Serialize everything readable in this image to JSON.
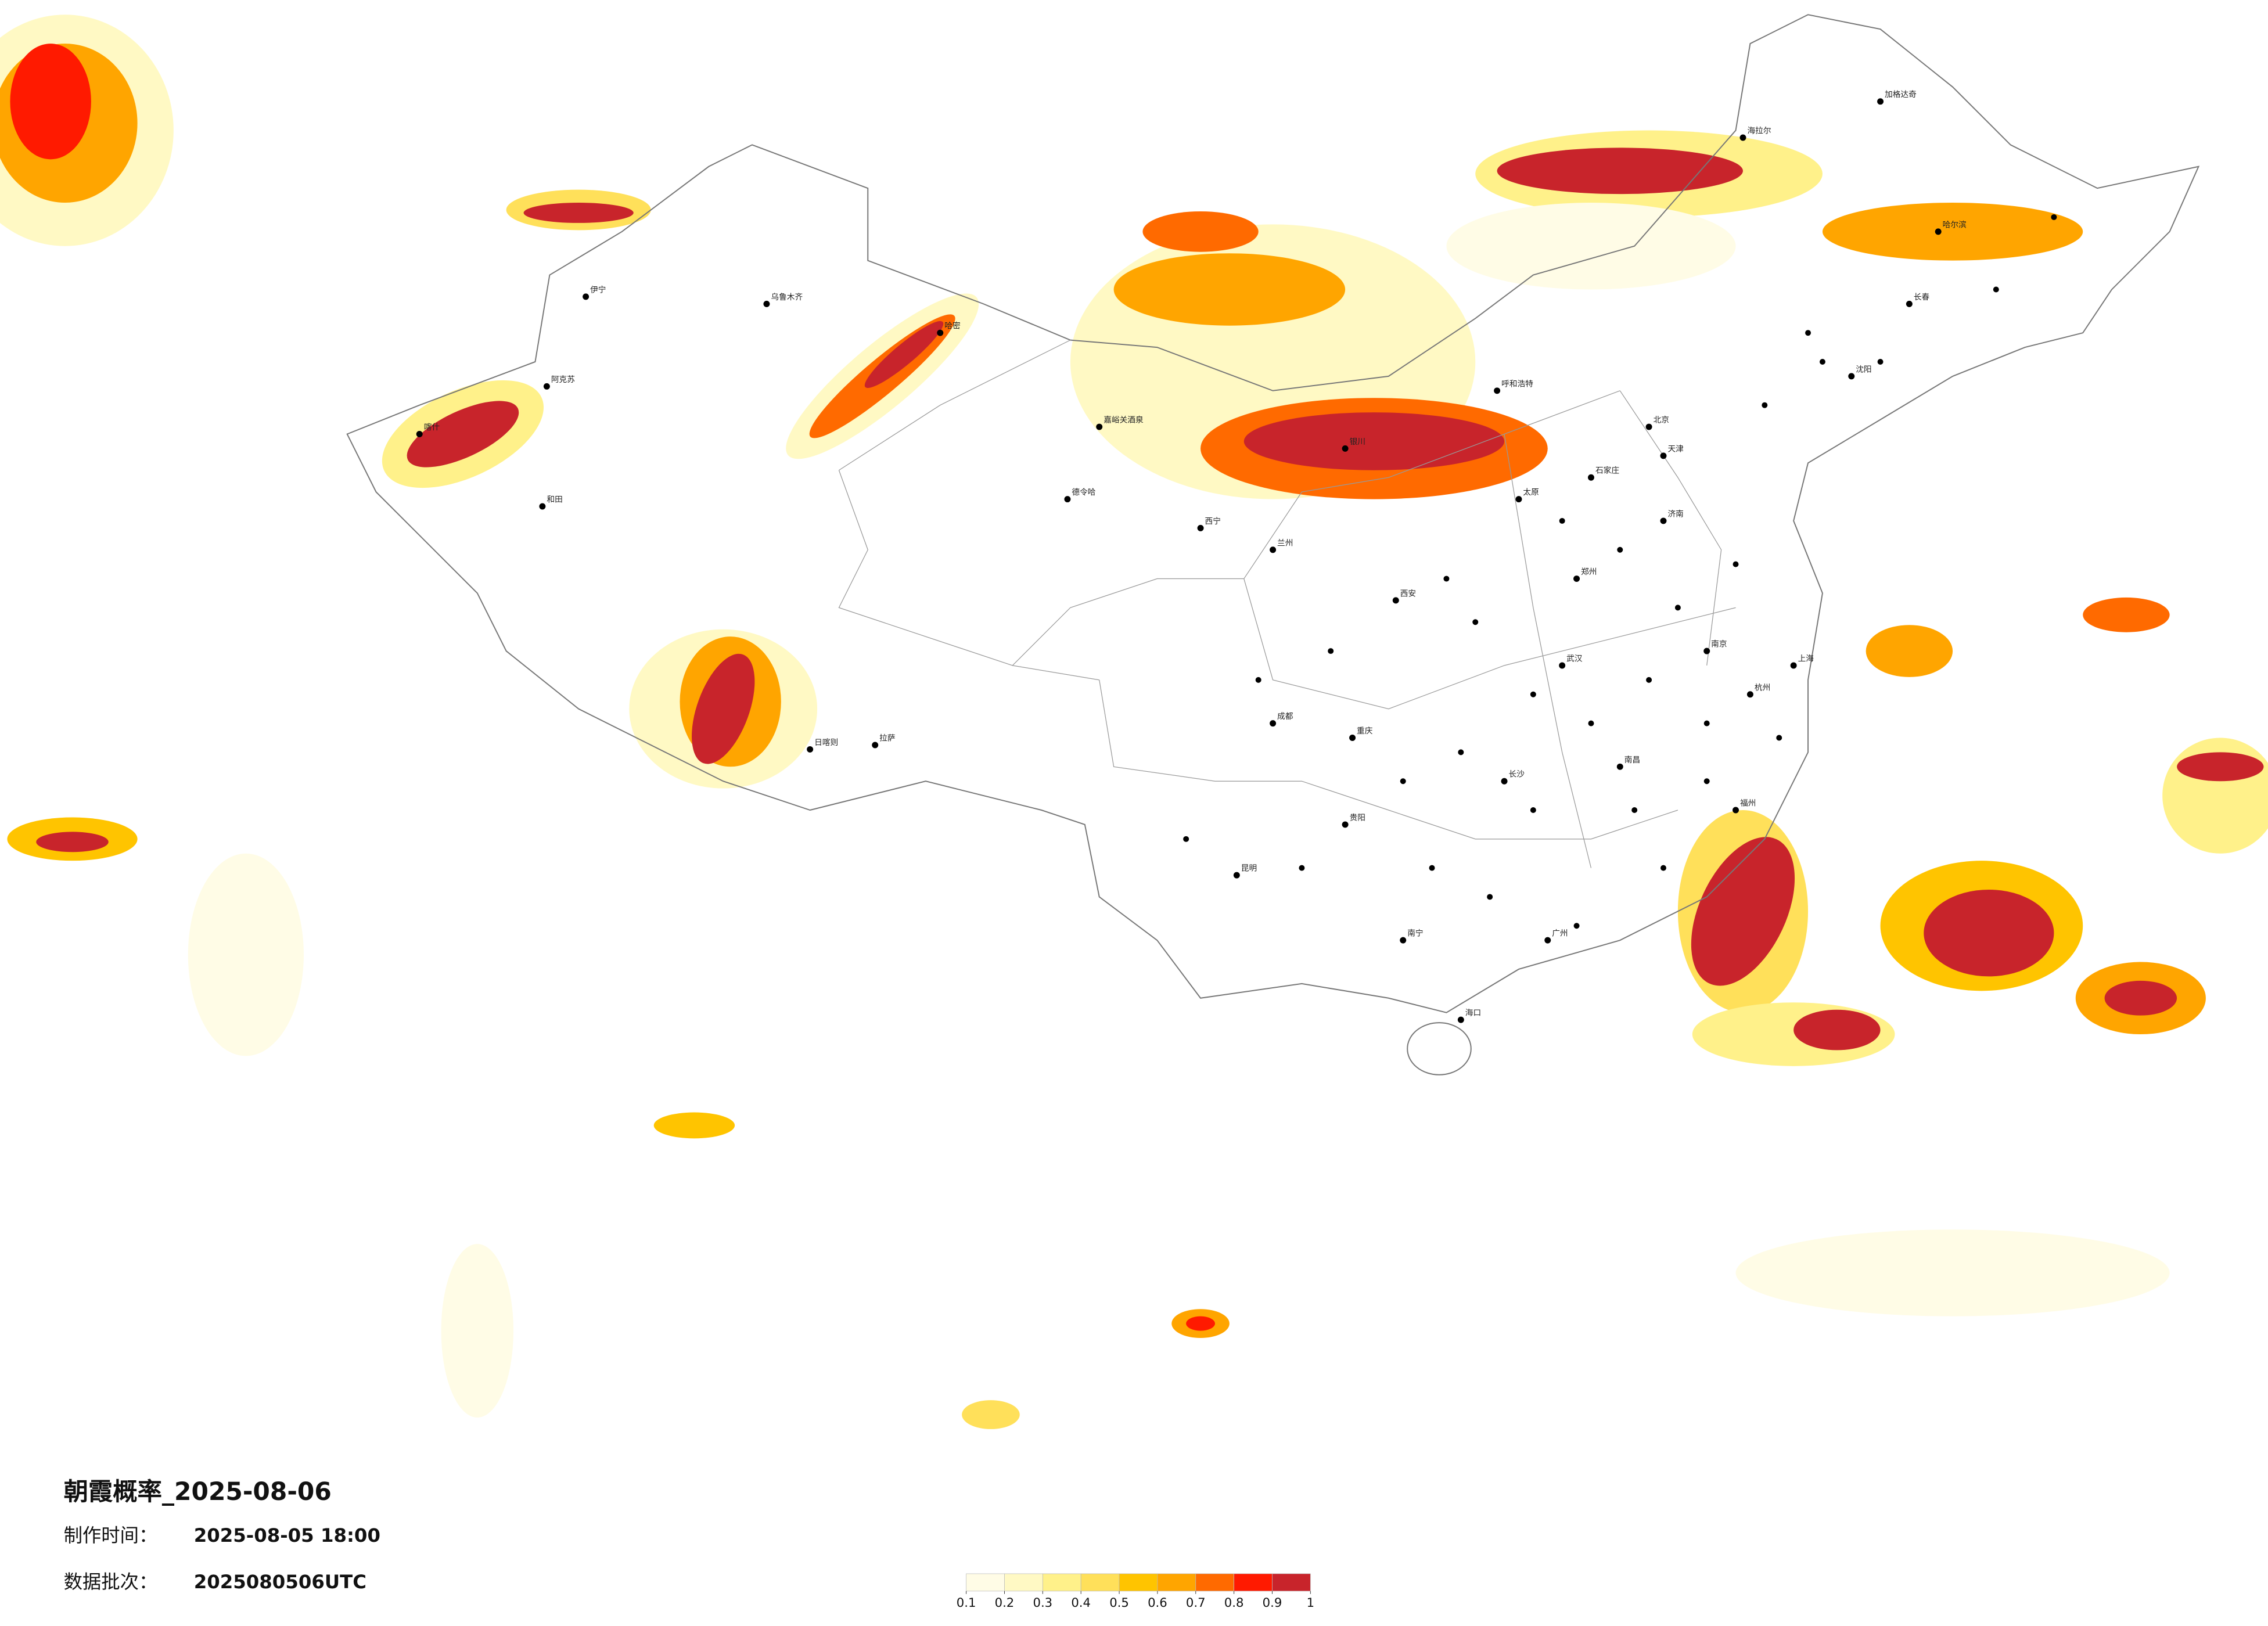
{
  "title": "朝霞概率_2025-08-06",
  "made_label": "制作时间：",
  "made_time": "2025-08-05 18:00",
  "batch_label": "数据批次：",
  "batch": "2025080506UTC",
  "colorbar": {
    "ticks": [
      0.1,
      0.2,
      0.3,
      0.4,
      0.5,
      0.6,
      0.7,
      0.8,
      0.9,
      1
    ],
    "colors": [
      "#fffce6",
      "#fff9c4",
      "#fff18a",
      "#ffe05a",
      "#ffc400",
      "#ffa500",
      "#ff6a00",
      "#ff1a00",
      "#c8242b"
    ]
  },
  "cities": [
    "乌鲁木齐",
    "伊宁",
    "阿克苏",
    "喀什",
    "和田",
    "哈密",
    "嘉峪关酒泉",
    "德令哈",
    "西宁",
    "兰州",
    "银川",
    "呼和浩特",
    "北京",
    "天津",
    "石家庄",
    "太原",
    "郑州",
    "西安",
    "拉萨",
    "日喀则",
    "成都",
    "重庆",
    "昆明",
    "贵阳",
    "南宁",
    "长沙",
    "武汉",
    "南昌",
    "杭州",
    "上海",
    "南京",
    "福州",
    "广州",
    "海口",
    "济南",
    "沈阳",
    "长春",
    "哈尔滨",
    "海拉尔",
    "加格达奇"
  ]
}
